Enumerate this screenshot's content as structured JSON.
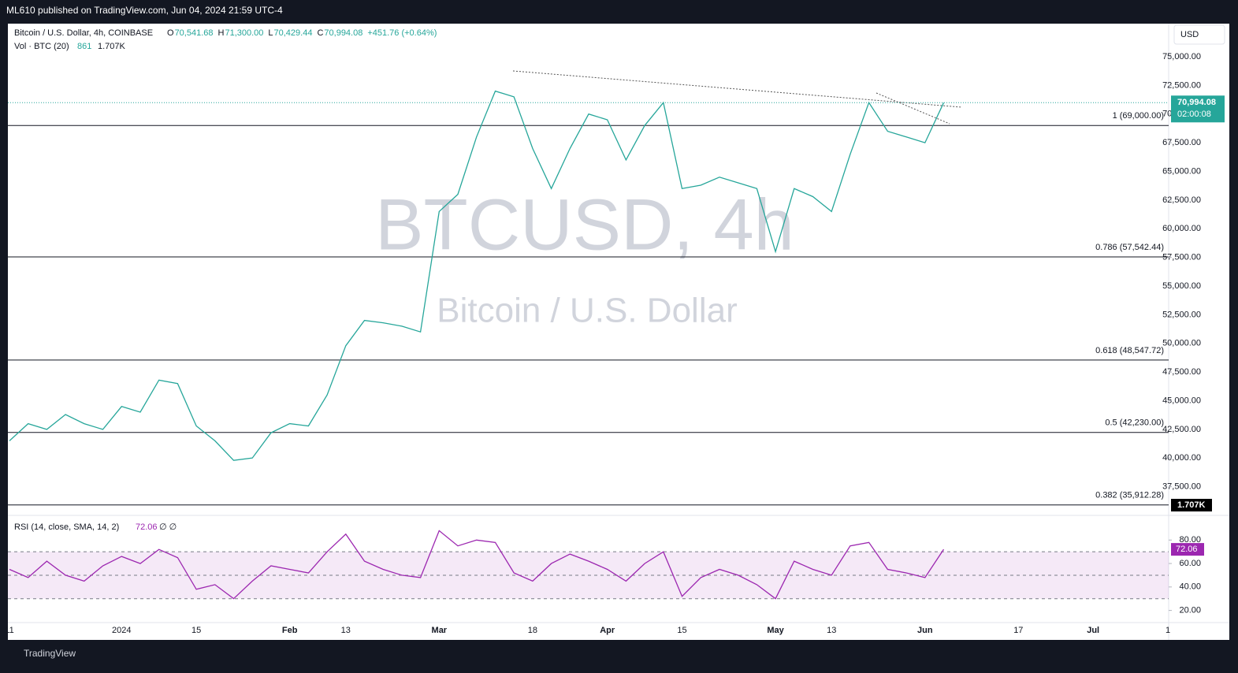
{
  "header": {
    "publisher": "ML610 published on TradingView.com, Jun 04, 2024 21:59 UTC-4",
    "symbol": "Bitcoin / U.S. Dollar, 4h, COINBASE",
    "ohlc": [
      {
        "key": "O",
        "value": "70,541.68"
      },
      {
        "key": "H",
        "value": "71,300.00"
      },
      {
        "key": "L",
        "value": "70,429.44"
      },
      {
        "key": "C",
        "value": "70,994.08"
      }
    ],
    "change": "+451.76 (+0.64%)",
    "vol_label": "Vol · BTC (20)",
    "vol_value": "861",
    "vol_sma": "1.707K",
    "currency": "USD",
    "watermark": "BTCUSD, 4h",
    "watermark_sub": "Bitcoin / U.S. Dollar",
    "footer": "TradingView"
  },
  "chart_data": [
    {
      "type": "line",
      "name": "price",
      "categories": [
        "11",
        null,
        null,
        null,
        null,
        null,
        "2024",
        null,
        null,
        null,
        "15",
        null,
        null,
        null,
        null,
        "Feb",
        null,
        null,
        "13",
        null,
        null,
        null,
        null,
        "Mar",
        null,
        null,
        null,
        null,
        "18",
        null,
        null,
        null,
        "Apr",
        null,
        null,
        null,
        "15",
        null,
        null,
        null,
        null,
        "May",
        null,
        null,
        "13",
        null,
        null,
        null,
        null,
        "Jun",
        null,
        null,
        null,
        null,
        "17",
        null,
        null,
        null,
        "Jul",
        null,
        null,
        null,
        "1"
      ],
      "series": [
        {
          "name": "BTCUSD",
          "color": "#26a69a",
          "values": [
            41500,
            43000,
            42500,
            43800,
            43000,
            42500,
            44500,
            44000,
            46800,
            46500,
            42800,
            41500,
            39800,
            40000,
            42200,
            43000,
            42800,
            45500,
            49800,
            52000,
            51800,
            51500,
            51000,
            61500,
            63000,
            68000,
            72000,
            71500,
            67000,
            63500,
            67000,
            70000,
            69500,
            66000,
            69000,
            71000,
            63500,
            63800,
            64500,
            64000,
            63500,
            58000,
            63500,
            62800,
            61500,
            66500,
            71000,
            68500,
            68000,
            67500,
            70994.08,
            null,
            null,
            null,
            null,
            null,
            null,
            null,
            null,
            null,
            null,
            null,
            null
          ]
        }
      ],
      "ylim": [
        35137,
        77543
      ],
      "yticks": [
        {
          "value": 37500,
          "label": "37,500.00"
        },
        {
          "value": 40000,
          "label": "40,000.00"
        },
        {
          "value": 42500,
          "label": "42,500.00"
        },
        {
          "value": 45000,
          "label": "45,000.00"
        },
        {
          "value": 47500,
          "label": "47,500.00"
        },
        {
          "value": 50000,
          "label": "50,000.00"
        },
        {
          "value": 52500,
          "label": "52,500.00"
        },
        {
          "value": 55000,
          "label": "55,000.00"
        },
        {
          "value": 57500,
          "label": "57,500.00"
        },
        {
          "value": 60000,
          "label": "60,000.00"
        },
        {
          "value": 62500,
          "label": "62,500.00"
        },
        {
          "value": 65000,
          "label": "65,000.00"
        },
        {
          "value": 67500,
          "label": "67,500.00"
        },
        {
          "value": 70000,
          "label": "70,000.00"
        },
        {
          "value": 72500,
          "label": "72,500.00"
        },
        {
          "value": 75000,
          "label": "75,000.00"
        }
      ],
      "levels": [
        {
          "value": 69000,
          "label": "1 (69,000.00)"
        },
        {
          "value": 57542.44,
          "label": "0.786 (57,542.44)"
        },
        {
          "value": 48547.72,
          "label": "0.618 (48,547.72)"
        },
        {
          "value": 42230,
          "label": "0.5 (42,230.00)"
        },
        {
          "value": 35912.28,
          "label": "0.382 (35,912.28)"
        }
      ],
      "last_price": {
        "value": 70994.08,
        "label": "70,994.08"
      },
      "countdown": "02:00:08"
    },
    {
      "type": "line",
      "name": "rsi",
      "title": "RSI (14, close, SMA, 14, 2)",
      "flags": "∅ ∅",
      "series": [
        {
          "name": "RSI",
          "color": "#9c27b0",
          "values": [
            55,
            48,
            62,
            50,
            45,
            58,
            66,
            60,
            72,
            65,
            38,
            42,
            30,
            45,
            58,
            55,
            52,
            70,
            85,
            62,
            55,
            50,
            48,
            88,
            75,
            80,
            78,
            52,
            45,
            60,
            68,
            62,
            55,
            45,
            60,
            70,
            32,
            48,
            55,
            50,
            42,
            30,
            62,
            55,
            50,
            75,
            78,
            55,
            52,
            48,
            72.06
          ]
        }
      ],
      "ylim": [
        11,
        99
      ],
      "yticks": [
        {
          "value": 20,
          "label": "20.00"
        },
        {
          "value": 40,
          "label": "40.00"
        },
        {
          "value": 60,
          "label": "60.00"
        },
        {
          "value": 80,
          "label": "80.00"
        }
      ],
      "bands": [
        30,
        50,
        70
      ],
      "current": 72.06
    }
  ]
}
